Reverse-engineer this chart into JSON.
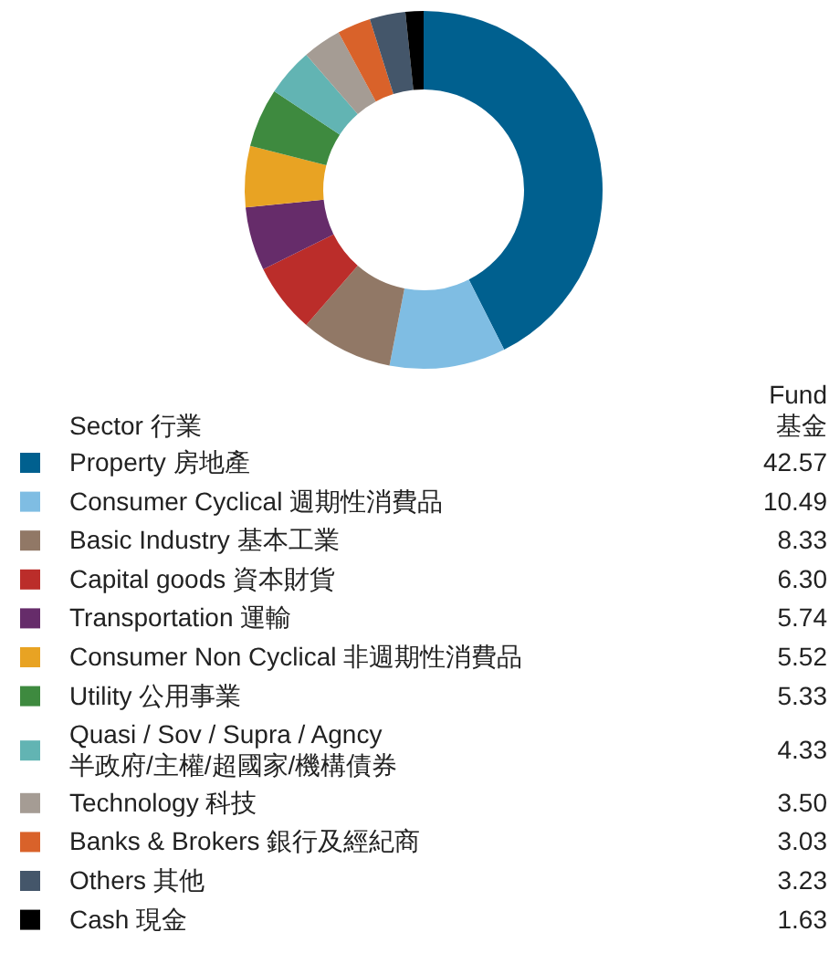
{
  "chart_data": {
    "type": "donut",
    "legend_title": "Sector 行業",
    "legend": "bottom",
    "annotations": [
      "Fund\n基金"
    ],
    "categories": [
      "Property 房地產",
      "Consumer Cyclical 週期性消費品",
      "Basic Industry 基本工業",
      "Capital goods 資本財貨",
      "Transportation 運輸",
      "Consumer Non Cyclical 非週期性消費品",
      "Utility 公用事業",
      "Quasi / Sov / Supra / Agncy\n半政府/主權/超國家/機構債券",
      "Technology 科技",
      "Banks & Brokers 銀行及經紀商",
      "Others 其他",
      "Cash 現金"
    ],
    "values": [
      42.57,
      10.49,
      8.33,
      6.3,
      5.74,
      5.52,
      5.33,
      4.33,
      3.5,
      3.03,
      3.23,
      1.63
    ],
    "value_labels": [
      "42.57",
      "10.49",
      "8.33",
      "6.30",
      "5.74",
      "5.52",
      "5.33",
      "4.33",
      "3.50",
      "3.03",
      "3.23",
      "1.63"
    ],
    "colors": [
      "#00608f",
      "#7fbde3",
      "#917866",
      "#bb2d2a",
      "#662c6a",
      "#e8a323",
      "#3e8a3f",
      "#62b4b3",
      "#a59c94",
      "#d9622a",
      "#44566a",
      "#000000"
    ]
  }
}
